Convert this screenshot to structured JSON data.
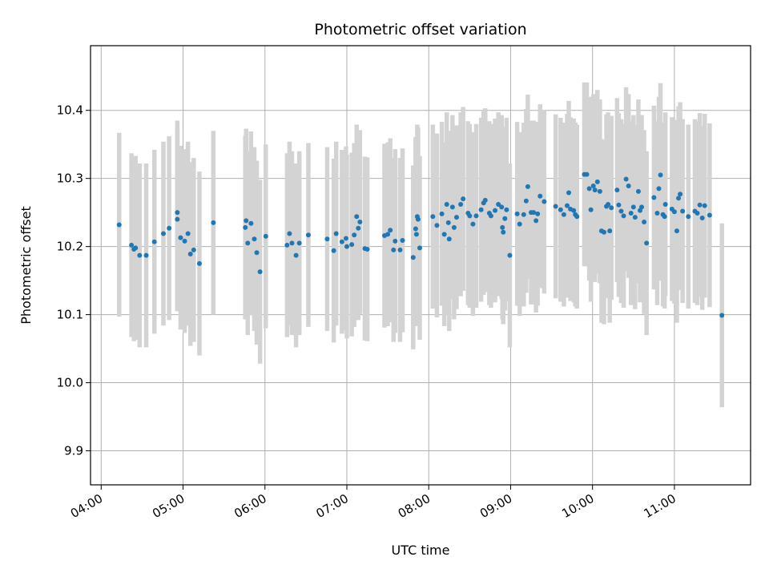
{
  "chart_data": {
    "type": "scatter",
    "title": "Photometric offset variation",
    "xlabel": "UTC time",
    "ylabel": "Photometric offset",
    "x_unit": "hours UTC",
    "xlim": [
      3.87,
      11.93
    ],
    "ylim": [
      9.85,
      10.495
    ],
    "x_ticks": [
      4,
      5,
      6,
      7,
      8,
      9,
      10,
      11
    ],
    "x_tick_labels": [
      "04:00",
      "05:00",
      "06:00",
      "07:00",
      "08:00",
      "09:00",
      "10:00",
      "11:00"
    ],
    "y_ticks": [
      9.9,
      10.0,
      10.1,
      10.2,
      10.3,
      10.4
    ],
    "y_tick_labels": [
      "9.9",
      "10.0",
      "10.1",
      "10.2",
      "10.3",
      "10.4"
    ],
    "grid": true,
    "colors": {
      "point": "#1f77b4",
      "errorbar": "#d3d3d3",
      "grid": "#b0b0b0"
    },
    "error_half_width": 0.135,
    "points": [
      [
        4.22,
        10.232
      ],
      [
        4.37,
        10.202
      ],
      [
        4.4,
        10.196
      ],
      [
        4.42,
        10.198
      ],
      [
        4.47,
        10.187
      ],
      [
        4.55,
        10.187
      ],
      [
        4.65,
        10.207
      ],
      [
        4.76,
        10.219
      ],
      [
        4.83,
        10.227
      ],
      [
        4.93,
        10.25
      ],
      [
        4.93,
        10.24
      ],
      [
        4.97,
        10.213
      ],
      [
        5.02,
        10.208
      ],
      [
        5.06,
        10.219
      ],
      [
        5.09,
        10.189
      ],
      [
        5.13,
        10.195
      ],
      [
        5.2,
        10.175
      ],
      [
        5.37,
        10.235
      ],
      [
        5.76,
        10.228
      ],
      [
        5.77,
        10.238
      ],
      [
        5.79,
        10.205
      ],
      [
        5.83,
        10.234
      ],
      [
        5.87,
        10.211
      ],
      [
        5.9,
        10.191
      ],
      [
        5.94,
        10.163
      ],
      [
        6.01,
        10.215
      ],
      [
        6.27,
        10.202
      ],
      [
        6.3,
        10.219
      ],
      [
        6.33,
        10.205
      ],
      [
        6.38,
        10.187
      ],
      [
        6.42,
        10.205
      ],
      [
        6.53,
        10.217
      ],
      [
        6.76,
        10.211
      ],
      [
        6.84,
        10.194
      ],
      [
        6.87,
        10.219
      ],
      [
        6.94,
        10.207
      ],
      [
        6.99,
        10.212
      ],
      [
        7.0,
        10.2
      ],
      [
        7.06,
        10.203
      ],
      [
        7.09,
        10.217
      ],
      [
        7.12,
        10.244
      ],
      [
        7.14,
        10.227
      ],
      [
        7.16,
        10.236
      ],
      [
        7.22,
        10.197
      ],
      [
        7.25,
        10.196
      ],
      [
        7.46,
        10.216
      ],
      [
        7.5,
        10.218
      ],
      [
        7.53,
        10.224
      ],
      [
        7.57,
        10.195
      ],
      [
        7.59,
        10.208
      ],
      [
        7.65,
        10.195
      ],
      [
        7.68,
        10.209
      ],
      [
        7.81,
        10.184
      ],
      [
        7.84,
        10.226
      ],
      [
        7.85,
        10.218
      ],
      [
        7.86,
        10.244
      ],
      [
        7.87,
        10.24
      ],
      [
        7.89,
        10.198
      ],
      [
        8.05,
        10.244
      ],
      [
        8.1,
        10.231
      ],
      [
        8.16,
        10.248
      ],
      [
        8.19,
        10.218
      ],
      [
        8.22,
        10.262
      ],
      [
        8.24,
        10.235
      ],
      [
        8.25,
        10.211
      ],
      [
        8.29,
        10.258
      ],
      [
        8.31,
        10.228
      ],
      [
        8.34,
        10.243
      ],
      [
        8.39,
        10.262
      ],
      [
        8.42,
        10.27
      ],
      [
        8.48,
        10.249
      ],
      [
        8.5,
        10.245
      ],
      [
        8.54,
        10.233
      ],
      [
        8.58,
        10.245
      ],
      [
        8.64,
        10.254
      ],
      [
        8.67,
        10.264
      ],
      [
        8.69,
        10.268
      ],
      [
        8.74,
        10.249
      ],
      [
        8.76,
        10.245
      ],
      [
        8.81,
        10.253
      ],
      [
        8.85,
        10.262
      ],
      [
        8.89,
        10.258
      ],
      [
        8.9,
        10.228
      ],
      [
        8.91,
        10.221
      ],
      [
        8.93,
        10.241
      ],
      [
        8.95,
        10.254
      ],
      [
        8.99,
        10.187
      ],
      [
        9.08,
        10.248
      ],
      [
        9.11,
        10.233
      ],
      [
        9.16,
        10.247
      ],
      [
        9.19,
        10.267
      ],
      [
        9.21,
        10.288
      ],
      [
        9.25,
        10.25
      ],
      [
        9.28,
        10.25
      ],
      [
        9.31,
        10.238
      ],
      [
        9.33,
        10.248
      ],
      [
        9.36,
        10.274
      ],
      [
        9.41,
        10.266
      ],
      [
        9.55,
        10.259
      ],
      [
        9.61,
        10.254
      ],
      [
        9.65,
        10.247
      ],
      [
        9.69,
        10.26
      ],
      [
        9.71,
        10.279
      ],
      [
        9.73,
        10.255
      ],
      [
        9.77,
        10.253
      ],
      [
        9.79,
        10.247
      ],
      [
        9.81,
        10.244
      ],
      [
        9.9,
        10.306
      ],
      [
        9.93,
        10.306
      ],
      [
        9.96,
        10.285
      ],
      [
        9.98,
        10.254
      ],
      [
        10.01,
        10.289
      ],
      [
        10.03,
        10.283
      ],
      [
        10.06,
        10.295
      ],
      [
        10.09,
        10.281
      ],
      [
        10.11,
        10.223
      ],
      [
        10.14,
        10.221
      ],
      [
        10.17,
        10.259
      ],
      [
        10.19,
        10.262
      ],
      [
        10.21,
        10.223
      ],
      [
        10.23,
        10.257
      ],
      [
        10.3,
        10.283
      ],
      [
        10.32,
        10.261
      ],
      [
        10.35,
        10.252
      ],
      [
        10.38,
        10.245
      ],
      [
        10.41,
        10.299
      ],
      [
        10.44,
        10.289
      ],
      [
        10.47,
        10.249
      ],
      [
        10.5,
        10.258
      ],
      [
        10.52,
        10.243
      ],
      [
        10.56,
        10.281
      ],
      [
        10.58,
        10.253
      ],
      [
        10.6,
        10.258
      ],
      [
        10.63,
        10.236
      ],
      [
        10.66,
        10.205
      ],
      [
        10.75,
        10.272
      ],
      [
        10.79,
        10.249
      ],
      [
        10.81,
        10.285
      ],
      [
        10.83,
        10.305
      ],
      [
        10.86,
        10.247
      ],
      [
        10.88,
        10.244
      ],
      [
        10.89,
        10.262
      ],
      [
        10.97,
        10.255
      ],
      [
        11.0,
        10.251
      ],
      [
        11.03,
        10.223
      ],
      [
        11.05,
        10.271
      ],
      [
        11.07,
        10.277
      ],
      [
        11.1,
        10.252
      ],
      [
        11.17,
        10.244
      ],
      [
        11.25,
        10.252
      ],
      [
        11.28,
        10.249
      ],
      [
        11.31,
        10.261
      ],
      [
        11.34,
        10.242
      ],
      [
        11.37,
        10.26
      ],
      [
        11.43,
        10.246
      ],
      [
        11.58,
        10.099
      ]
    ]
  }
}
